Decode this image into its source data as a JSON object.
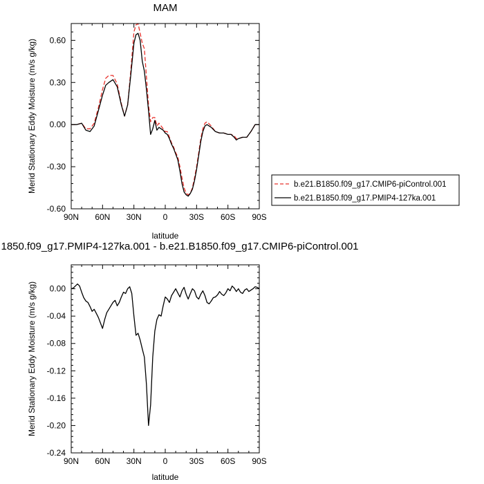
{
  "chart_data": [
    {
      "type": "line",
      "title": "MAM",
      "xlabel": "latitude",
      "ylabel": "Merid Stationary Eddy Moisture (m/s g/kg)",
      "xlim": [
        90,
        -90
      ],
      "ylim": [
        -0.6,
        0.72
      ],
      "x_ticks": [
        {
          "value": 90,
          "label": "90N"
        },
        {
          "value": 60,
          "label": "60N"
        },
        {
          "value": 30,
          "label": "30N"
        },
        {
          "value": 0,
          "label": "0"
        },
        {
          "value": -30,
          "label": "30S"
        },
        {
          "value": -60,
          "label": "60S"
        },
        {
          "value": -90,
          "label": "90S"
        }
      ],
      "y_ticks": [
        {
          "value": 0.6,
          "label": "0.60"
        },
        {
          "value": 0.3,
          "label": "0.30"
        },
        {
          "value": 0.0,
          "label": "0.00"
        },
        {
          "value": -0.3,
          "label": "-0.30"
        },
        {
          "value": -0.6,
          "label": "-0.60"
        }
      ],
      "legend": {
        "placement": "right",
        "entries": [
          {
            "label": "b.e21.B1850.f09_g17.CMIP6-piControl.001",
            "color": "#e8302a",
            "style": "dashed"
          },
          {
            "label": "b.e21.B1850.f09_g17.PMIP4-127ka.001",
            "color": "#000000",
            "style": "solid"
          }
        ]
      },
      "series": [
        {
          "color": "#e8302a",
          "style": "dashed",
          "x": [
            90,
            85,
            80,
            76,
            72,
            68,
            64,
            60,
            57,
            54,
            50,
            46,
            42,
            39,
            36,
            33,
            30,
            28,
            26,
            24,
            22,
            20,
            18,
            16,
            14,
            12,
            10,
            8,
            6,
            4,
            2,
            0,
            -2,
            -4,
            -6,
            -8,
            -10,
            -12,
            -14,
            -16,
            -18,
            -20,
            -22,
            -24,
            -26,
            -28,
            -30,
            -32,
            -34,
            -36,
            -38,
            -40,
            -44,
            -48,
            -52,
            -56,
            -60,
            -63,
            -66,
            -68,
            -70,
            -74,
            -78,
            -82,
            -86,
            -90
          ],
          "values": [
            0.0,
            0.0,
            0.01,
            -0.03,
            -0.03,
            0.01,
            0.12,
            0.25,
            0.33,
            0.35,
            0.35,
            0.29,
            0.15,
            0.06,
            0.14,
            0.38,
            0.66,
            0.71,
            0.72,
            0.65,
            0.58,
            0.54,
            0.34,
            0.14,
            0.02,
            0.05,
            0.05,
            -0.01,
            0.01,
            -0.01,
            -0.03,
            -0.05,
            -0.05,
            -0.09,
            -0.13,
            -0.16,
            -0.2,
            -0.23,
            -0.3,
            -0.38,
            -0.45,
            -0.49,
            -0.5,
            -0.49,
            -0.45,
            -0.38,
            -0.3,
            -0.2,
            -0.1,
            -0.03,
            0.01,
            0.02,
            -0.01,
            -0.05,
            -0.06,
            -0.06,
            -0.07,
            -0.07,
            -0.08,
            -0.1,
            -0.1,
            -0.09,
            -0.09,
            -0.05,
            0.0,
            0.0
          ]
        },
        {
          "color": "#000000",
          "style": "solid",
          "x": [
            90,
            85,
            80,
            76,
            72,
            68,
            64,
            60,
            57,
            54,
            50,
            46,
            42,
            39,
            36,
            33,
            30,
            28,
            26,
            24,
            22,
            20,
            18,
            16,
            14,
            12,
            10,
            8,
            6,
            4,
            2,
            0,
            -2,
            -4,
            -6,
            -8,
            -10,
            -12,
            -14,
            -16,
            -18,
            -20,
            -22,
            -24,
            -26,
            -28,
            -30,
            -32,
            -34,
            -36,
            -38,
            -40,
            -44,
            -48,
            -52,
            -56,
            -60,
            -63,
            -66,
            -68,
            -70,
            -74,
            -78,
            -82,
            -86,
            -90
          ],
          "values": [
            0.0,
            0.0,
            0.01,
            -0.04,
            -0.05,
            -0.01,
            0.1,
            0.21,
            0.28,
            0.3,
            0.32,
            0.27,
            0.14,
            0.06,
            0.14,
            0.35,
            0.58,
            0.64,
            0.65,
            0.6,
            0.45,
            0.38,
            0.25,
            0.1,
            -0.07,
            -0.03,
            0.03,
            -0.04,
            -0.02,
            -0.03,
            -0.04,
            -0.06,
            -0.07,
            -0.1,
            -0.14,
            -0.17,
            -0.21,
            -0.25,
            -0.33,
            -0.42,
            -0.48,
            -0.5,
            -0.51,
            -0.49,
            -0.46,
            -0.4,
            -0.32,
            -0.22,
            -0.12,
            -0.05,
            -0.01,
            0.0,
            -0.02,
            -0.05,
            -0.06,
            -0.06,
            -0.07,
            -0.07,
            -0.09,
            -0.11,
            -0.1,
            -0.09,
            -0.09,
            -0.05,
            0.0,
            0.0
          ]
        }
      ]
    },
    {
      "type": "line",
      "title": "1850.f09_g17.PMIP4-127ka.001 - b.e21.B1850.f09_g17.CMIP6-piControl.001",
      "xlabel": "latitude",
      "ylabel": "Merid Stationary Eddy Moisture (m/s g/kg)",
      "xlim": [
        90,
        -90
      ],
      "ylim": [
        -0.24,
        0.035
      ],
      "x_ticks": [
        {
          "value": 90,
          "label": "90N"
        },
        {
          "value": 60,
          "label": "60N"
        },
        {
          "value": 30,
          "label": "30N"
        },
        {
          "value": 0,
          "label": "0"
        },
        {
          "value": -30,
          "label": "30S"
        },
        {
          "value": -60,
          "label": "60S"
        },
        {
          "value": -90,
          "label": "90S"
        }
      ],
      "y_ticks": [
        {
          "value": 0.0,
          "label": "0.00"
        },
        {
          "value": -0.04,
          "label": "-0.04"
        },
        {
          "value": -0.08,
          "label": "-0.08"
        },
        {
          "value": -0.12,
          "label": "-0.12"
        },
        {
          "value": -0.16,
          "label": "-0.16"
        },
        {
          "value": -0.2,
          "label": "-0.20"
        },
        {
          "value": -0.24,
          "label": "-0.24"
        }
      ],
      "series": [
        {
          "color": "#000000",
          "style": "solid",
          "x": [
            90,
            88,
            86,
            84,
            82,
            80,
            78,
            76,
            74,
            72,
            70,
            68,
            66,
            64,
            62,
            60,
            58,
            56,
            54,
            52,
            50,
            48,
            46,
            44,
            42,
            40,
            38,
            36,
            34,
            32,
            30,
            28,
            26,
            24,
            22,
            20,
            18,
            16,
            14,
            12,
            10,
            8,
            6,
            4,
            2,
            0,
            -2,
            -4,
            -6,
            -8,
            -10,
            -12,
            -14,
            -16,
            -18,
            -20,
            -22,
            -24,
            -26,
            -28,
            -30,
            -32,
            -34,
            -36,
            -38,
            -40,
            -42,
            -44,
            -46,
            -48,
            -50,
            -52,
            -54,
            -56,
            -58,
            -60,
            -62,
            -64,
            -66,
            -68,
            -70,
            -72,
            -74,
            -76,
            -78,
            -80,
            -82,
            -84,
            -86,
            -88,
            -90
          ],
          "values": [
            0.0,
            0.001,
            0.004,
            0.007,
            0.004,
            -0.005,
            -0.013,
            -0.018,
            -0.02,
            -0.026,
            -0.033,
            -0.03,
            -0.036,
            -0.042,
            -0.05,
            -0.058,
            -0.045,
            -0.035,
            -0.03,
            -0.025,
            -0.02,
            -0.017,
            -0.025,
            -0.02,
            -0.012,
            -0.005,
            -0.007,
            0.0,
            0.003,
            -0.007,
            -0.04,
            -0.068,
            -0.065,
            -0.075,
            -0.088,
            -0.1,
            -0.14,
            -0.2,
            -0.17,
            -0.1,
            -0.062,
            -0.045,
            -0.038,
            -0.04,
            -0.025,
            -0.012,
            -0.015,
            -0.02,
            -0.01,
            -0.005,
            0.0,
            -0.006,
            -0.012,
            -0.003,
            0.002,
            -0.008,
            -0.015,
            -0.007,
            0.0,
            -0.003,
            -0.012,
            -0.015,
            -0.008,
            -0.003,
            -0.01,
            -0.02,
            -0.022,
            -0.018,
            -0.013,
            -0.012,
            -0.009,
            -0.004,
            -0.008,
            -0.01,
            -0.006,
            0.0,
            -0.003,
            0.004,
            0.001,
            -0.004,
            0.0,
            -0.005,
            -0.007,
            -0.002,
            0.0,
            -0.004,
            -0.002,
            0.0,
            0.003,
            0.002,
            0.0
          ]
        }
      ]
    }
  ]
}
